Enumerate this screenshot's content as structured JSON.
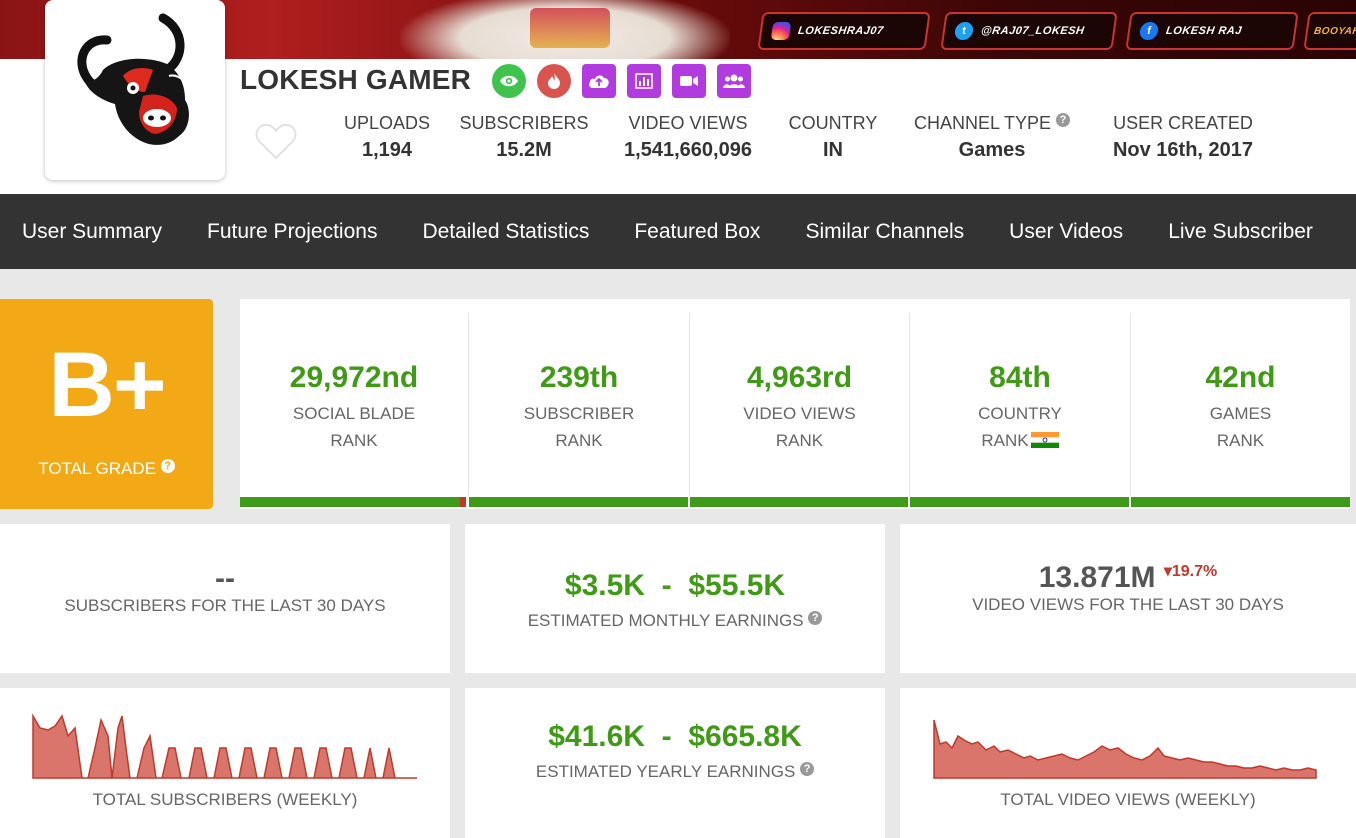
{
  "banner": {
    "socials": [
      {
        "name": "instagram",
        "icon": "instagram-icon",
        "label": "LOKESHRAJ07"
      },
      {
        "name": "twitter",
        "icon": "twitter-icon",
        "label": "@RAJ07_LOKESH"
      },
      {
        "name": "facebook",
        "icon": "facebook-icon",
        "label": "LOKESH RAJ"
      },
      {
        "name": "booyah",
        "icon": "",
        "label": "BOOYAH"
      }
    ]
  },
  "channel": {
    "name": "LOKESH GAMER",
    "avatar_icon": "bull-logo-icon",
    "badges": [
      "eye-icon",
      "fire-icon",
      "cloud-upload-icon",
      "bar-chart-icon",
      "video-camera-icon",
      "group-icon"
    ]
  },
  "stats": {
    "uploads": {
      "label": "UPLOADS",
      "value": "1,194"
    },
    "subscribers": {
      "label": "SUBSCRIBERS",
      "value": "15.2M"
    },
    "video_views": {
      "label": "VIDEO VIEWS",
      "value": "1,541,660,096"
    },
    "country": {
      "label": "COUNTRY",
      "value": "IN"
    },
    "channel_type": {
      "label": "CHANNEL TYPE",
      "value": "Games"
    },
    "user_created": {
      "label": "USER CREATED",
      "value": "Nov 16th, 2017"
    }
  },
  "nav": [
    "User Summary",
    "Future Projections",
    "Detailed Statistics",
    "Featured Box",
    "Similar Channels",
    "User Videos",
    "Live Subscriber"
  ],
  "grade": {
    "letter": "B+",
    "label": "TOTAL GRADE",
    "color": "#f2a915"
  },
  "ranks": [
    {
      "value": "29,972nd",
      "line1": "SOCIAL BLADE",
      "line2": "RANK"
    },
    {
      "value": "239th",
      "line1": "SUBSCRIBER",
      "line2": "RANK"
    },
    {
      "value": "4,963rd",
      "line1": "VIDEO VIEWS",
      "line2": "RANK"
    },
    {
      "value": "84th",
      "line1": "COUNTRY",
      "line2": "RANK"
    },
    {
      "value": "42nd",
      "line1": "GAMES",
      "line2": "RANK"
    }
  ],
  "cards": {
    "subs30": {
      "value": "--",
      "label": "SUBSCRIBERS FOR THE LAST 30 DAYS"
    },
    "monthly": {
      "low": "$3.5K",
      "sep": "-",
      "high": "$55.5K",
      "label": "ESTIMATED MONTHLY EARNINGS"
    },
    "views30": {
      "value": "13.871M",
      "delta": "19.7%",
      "label": "VIDEO VIEWS FOR THE LAST 30 DAYS"
    },
    "yearly": {
      "low": "$41.6K",
      "sep": "-",
      "high": "$665.8K",
      "label": "ESTIMATED YEARLY EARNINGS"
    },
    "subs_weekly": {
      "label": "TOTAL SUBSCRIBERS (WEEKLY)"
    },
    "views_weekly": {
      "label": "TOTAL VIDEO VIEWS (WEEKLY)"
    }
  },
  "colors": {
    "accent_green": "#3f9a16",
    "nav_bg": "#333333",
    "chart_fill": "#d9756a",
    "chart_line": "#c0392b"
  }
}
